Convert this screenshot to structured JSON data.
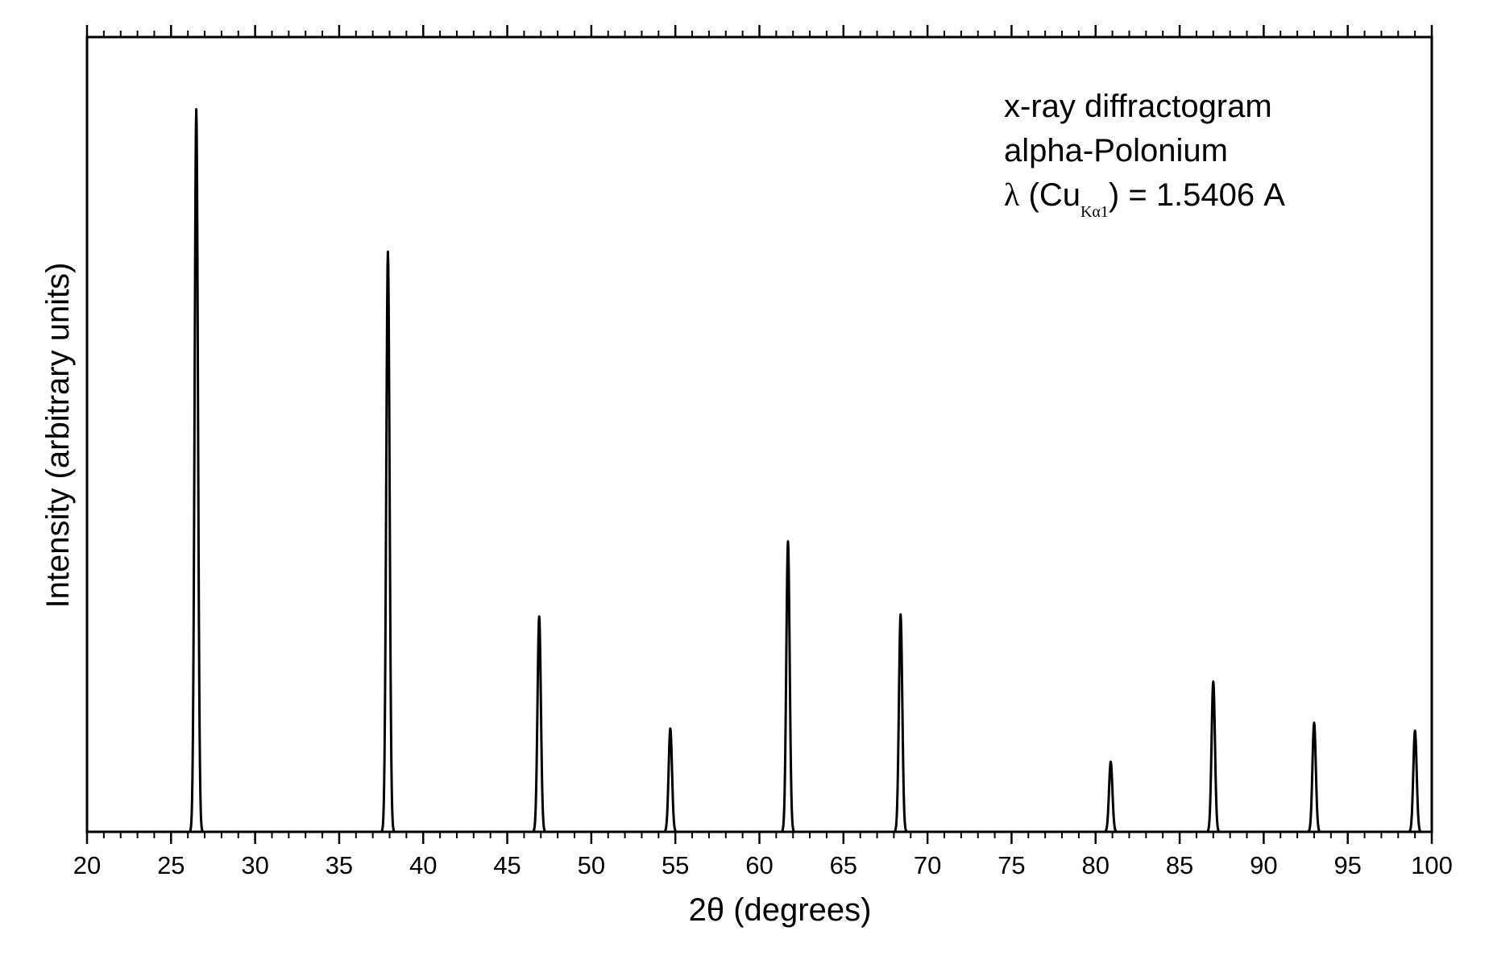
{
  "chart_data": {
    "type": "line",
    "title": "",
    "xlabel": "2θ (degrees)",
    "ylabel": "Intensity (arbitrary units)",
    "xlim": [
      20,
      100
    ],
    "ylim": [
      0,
      110
    ],
    "x_major_ticks": [
      20,
      25,
      30,
      35,
      40,
      45,
      50,
      55,
      60,
      65,
      70,
      75,
      80,
      85,
      90,
      95,
      100
    ],
    "x_tick_labels": [
      "20",
      "25",
      "30",
      "35",
      "40",
      "45",
      "50",
      "55",
      "60",
      "65",
      "70",
      "75",
      "80",
      "85",
      "90",
      "95",
      "100"
    ],
    "x_minor_step": 1,
    "y_tick_labels": false,
    "grid": false,
    "line_color": "#000000",
    "annotation": {
      "line1": "x-ray diffractogram",
      "line2": "alpha-Polonium",
      "line3_lambda": "λ",
      "line3_open": " (Cu",
      "line3_sub": "Kα1",
      "line3_close": ") = 1.5406 A"
    },
    "peaks": [
      {
        "x": 26.5,
        "y": 100
      },
      {
        "x": 37.9,
        "y": 80.3
      },
      {
        "x": 46.9,
        "y": 29.8
      },
      {
        "x": 54.7,
        "y": 14.3
      },
      {
        "x": 61.7,
        "y": 40.2
      },
      {
        "x": 68.4,
        "y": 30.1
      },
      {
        "x": 80.9,
        "y": 9.7
      },
      {
        "x": 87.0,
        "y": 20.8
      },
      {
        "x": 93.0,
        "y": 15.1
      },
      {
        "x": 99.0,
        "y": 14.0
      }
    ]
  }
}
